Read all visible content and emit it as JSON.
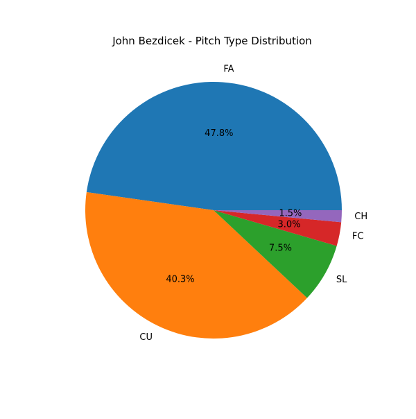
{
  "chart_data": {
    "type": "pie",
    "title": "John Bezdicek - Pitch Type Distribution",
    "slices": [
      {
        "label": "FA",
        "value": 47.8,
        "pct_text": "47.8%",
        "color": "#1f77b4"
      },
      {
        "label": "CU",
        "value": 40.3,
        "pct_text": "40.3%",
        "color": "#ff7f0e"
      },
      {
        "label": "SL",
        "value": 7.5,
        "pct_text": "7.5%",
        "color": "#2ca02c"
      },
      {
        "label": "FC",
        "value": 3.0,
        "pct_text": "3.0%",
        "color": "#d62728"
      },
      {
        "label": "CH",
        "value": 1.5,
        "pct_text": "1.5%",
        "color": "#9467bd"
      }
    ],
    "start_angle_deg": 0,
    "direction": "counterclockwise",
    "legend": "none"
  }
}
